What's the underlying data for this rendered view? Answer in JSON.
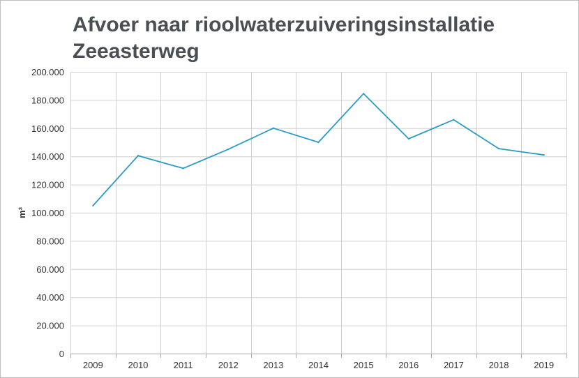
{
  "chart_data": {
    "type": "line",
    "title_lines": [
      "Afvoer naar rioolwaterzuiveringsinstallatie",
      "Zeeasterweg"
    ],
    "ylabel": "m³",
    "xlabel": "",
    "categories": [
      "2009",
      "2010",
      "2011",
      "2012",
      "2013",
      "2014",
      "2015",
      "2016",
      "2017",
      "2018",
      "2019"
    ],
    "series": [
      {
        "values": [
          105000,
          140500,
          131500,
          145000,
          160000,
          150000,
          184500,
          152500,
          166000,
          145500,
          141000
        ],
        "color": "#2a9bc3"
      }
    ],
    "ylim": [
      0,
      200000
    ],
    "yticks": [
      0,
      20000,
      40000,
      60000,
      80000,
      100000,
      120000,
      140000,
      160000,
      180000,
      200000
    ],
    "ytick_labels": [
      "0",
      "20.000",
      "40.000",
      "60.000",
      "80.000",
      "100.000",
      "120.000",
      "140.000",
      "160.000",
      "180.000",
      "200.000"
    ],
    "grid": true,
    "legend": "none"
  }
}
